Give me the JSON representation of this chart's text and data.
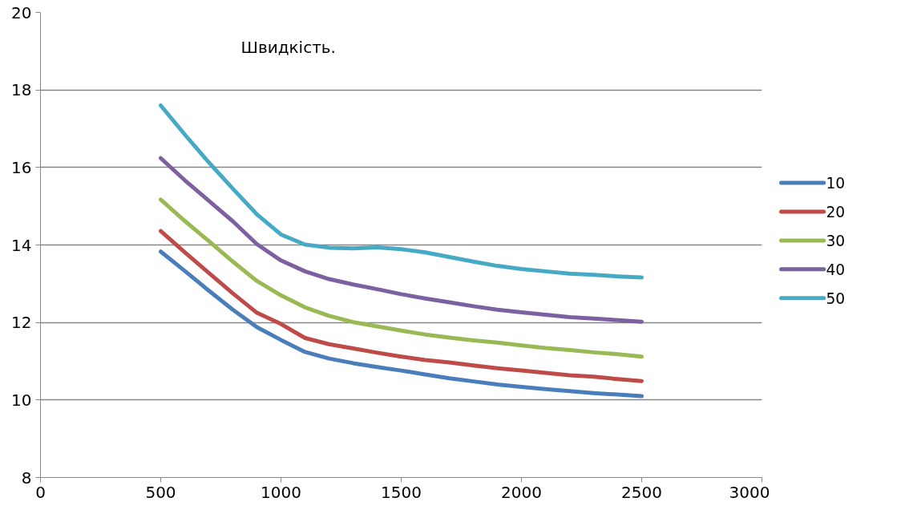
{
  "chart_data": {
    "type": "line",
    "title": "Швидкість.",
    "x": [
      500,
      600,
      700,
      800,
      900,
      1000,
      1100,
      1200,
      1300,
      1400,
      1500,
      1600,
      1700,
      1800,
      1900,
      2000,
      2100,
      2200,
      2300,
      2400,
      2500
    ],
    "series": [
      {
        "name": "10",
        "color": "#4a7ebb",
        "values": [
          13.83,
          13.33,
          12.82,
          12.33,
          11.88,
          11.55,
          11.24,
          11.07,
          10.95,
          10.85,
          10.76,
          10.66,
          10.56,
          10.48,
          10.4,
          10.34,
          10.28,
          10.23,
          10.18,
          10.14,
          10.1
        ]
      },
      {
        "name": "20",
        "color": "#be4b48",
        "values": [
          14.36,
          13.81,
          13.28,
          12.75,
          12.25,
          11.96,
          11.6,
          11.44,
          11.33,
          11.22,
          11.12,
          11.03,
          10.97,
          10.89,
          10.82,
          10.76,
          10.7,
          10.64,
          10.6,
          10.54,
          10.49
        ]
      },
      {
        "name": "30",
        "color": "#98b954",
        "values": [
          15.17,
          14.62,
          14.1,
          13.57,
          13.07,
          12.7,
          12.39,
          12.17,
          12.01,
          11.9,
          11.79,
          11.69,
          11.61,
          11.54,
          11.48,
          11.41,
          11.34,
          11.29,
          11.23,
          11.18,
          11.12
        ]
      },
      {
        "name": "40",
        "color": "#7d60a0",
        "values": [
          16.24,
          15.67,
          15.14,
          14.61,
          14.02,
          13.6,
          13.32,
          13.12,
          12.98,
          12.86,
          12.73,
          12.62,
          12.52,
          12.42,
          12.33,
          12.26,
          12.2,
          12.14,
          12.1,
          12.06,
          12.02
        ]
      },
      {
        "name": "50",
        "color": "#46aac5",
        "values": [
          17.6,
          16.85,
          16.13,
          15.45,
          14.79,
          14.27,
          14.01,
          13.93,
          13.91,
          13.94,
          13.89,
          13.81,
          13.69,
          13.57,
          13.46,
          13.38,
          13.32,
          13.26,
          13.23,
          13.19,
          13.16
        ]
      }
    ],
    "xlim": [
      0,
      3000
    ],
    "xticks": [
      0,
      500,
      1000,
      1500,
      2000,
      2500,
      3000
    ],
    "ylim": [
      8,
      20
    ],
    "yticks": [
      8,
      10,
      12,
      14,
      16,
      18,
      20
    ],
    "grid": "y",
    "legend": "right",
    "marker": "none",
    "line_style": "solid"
  }
}
